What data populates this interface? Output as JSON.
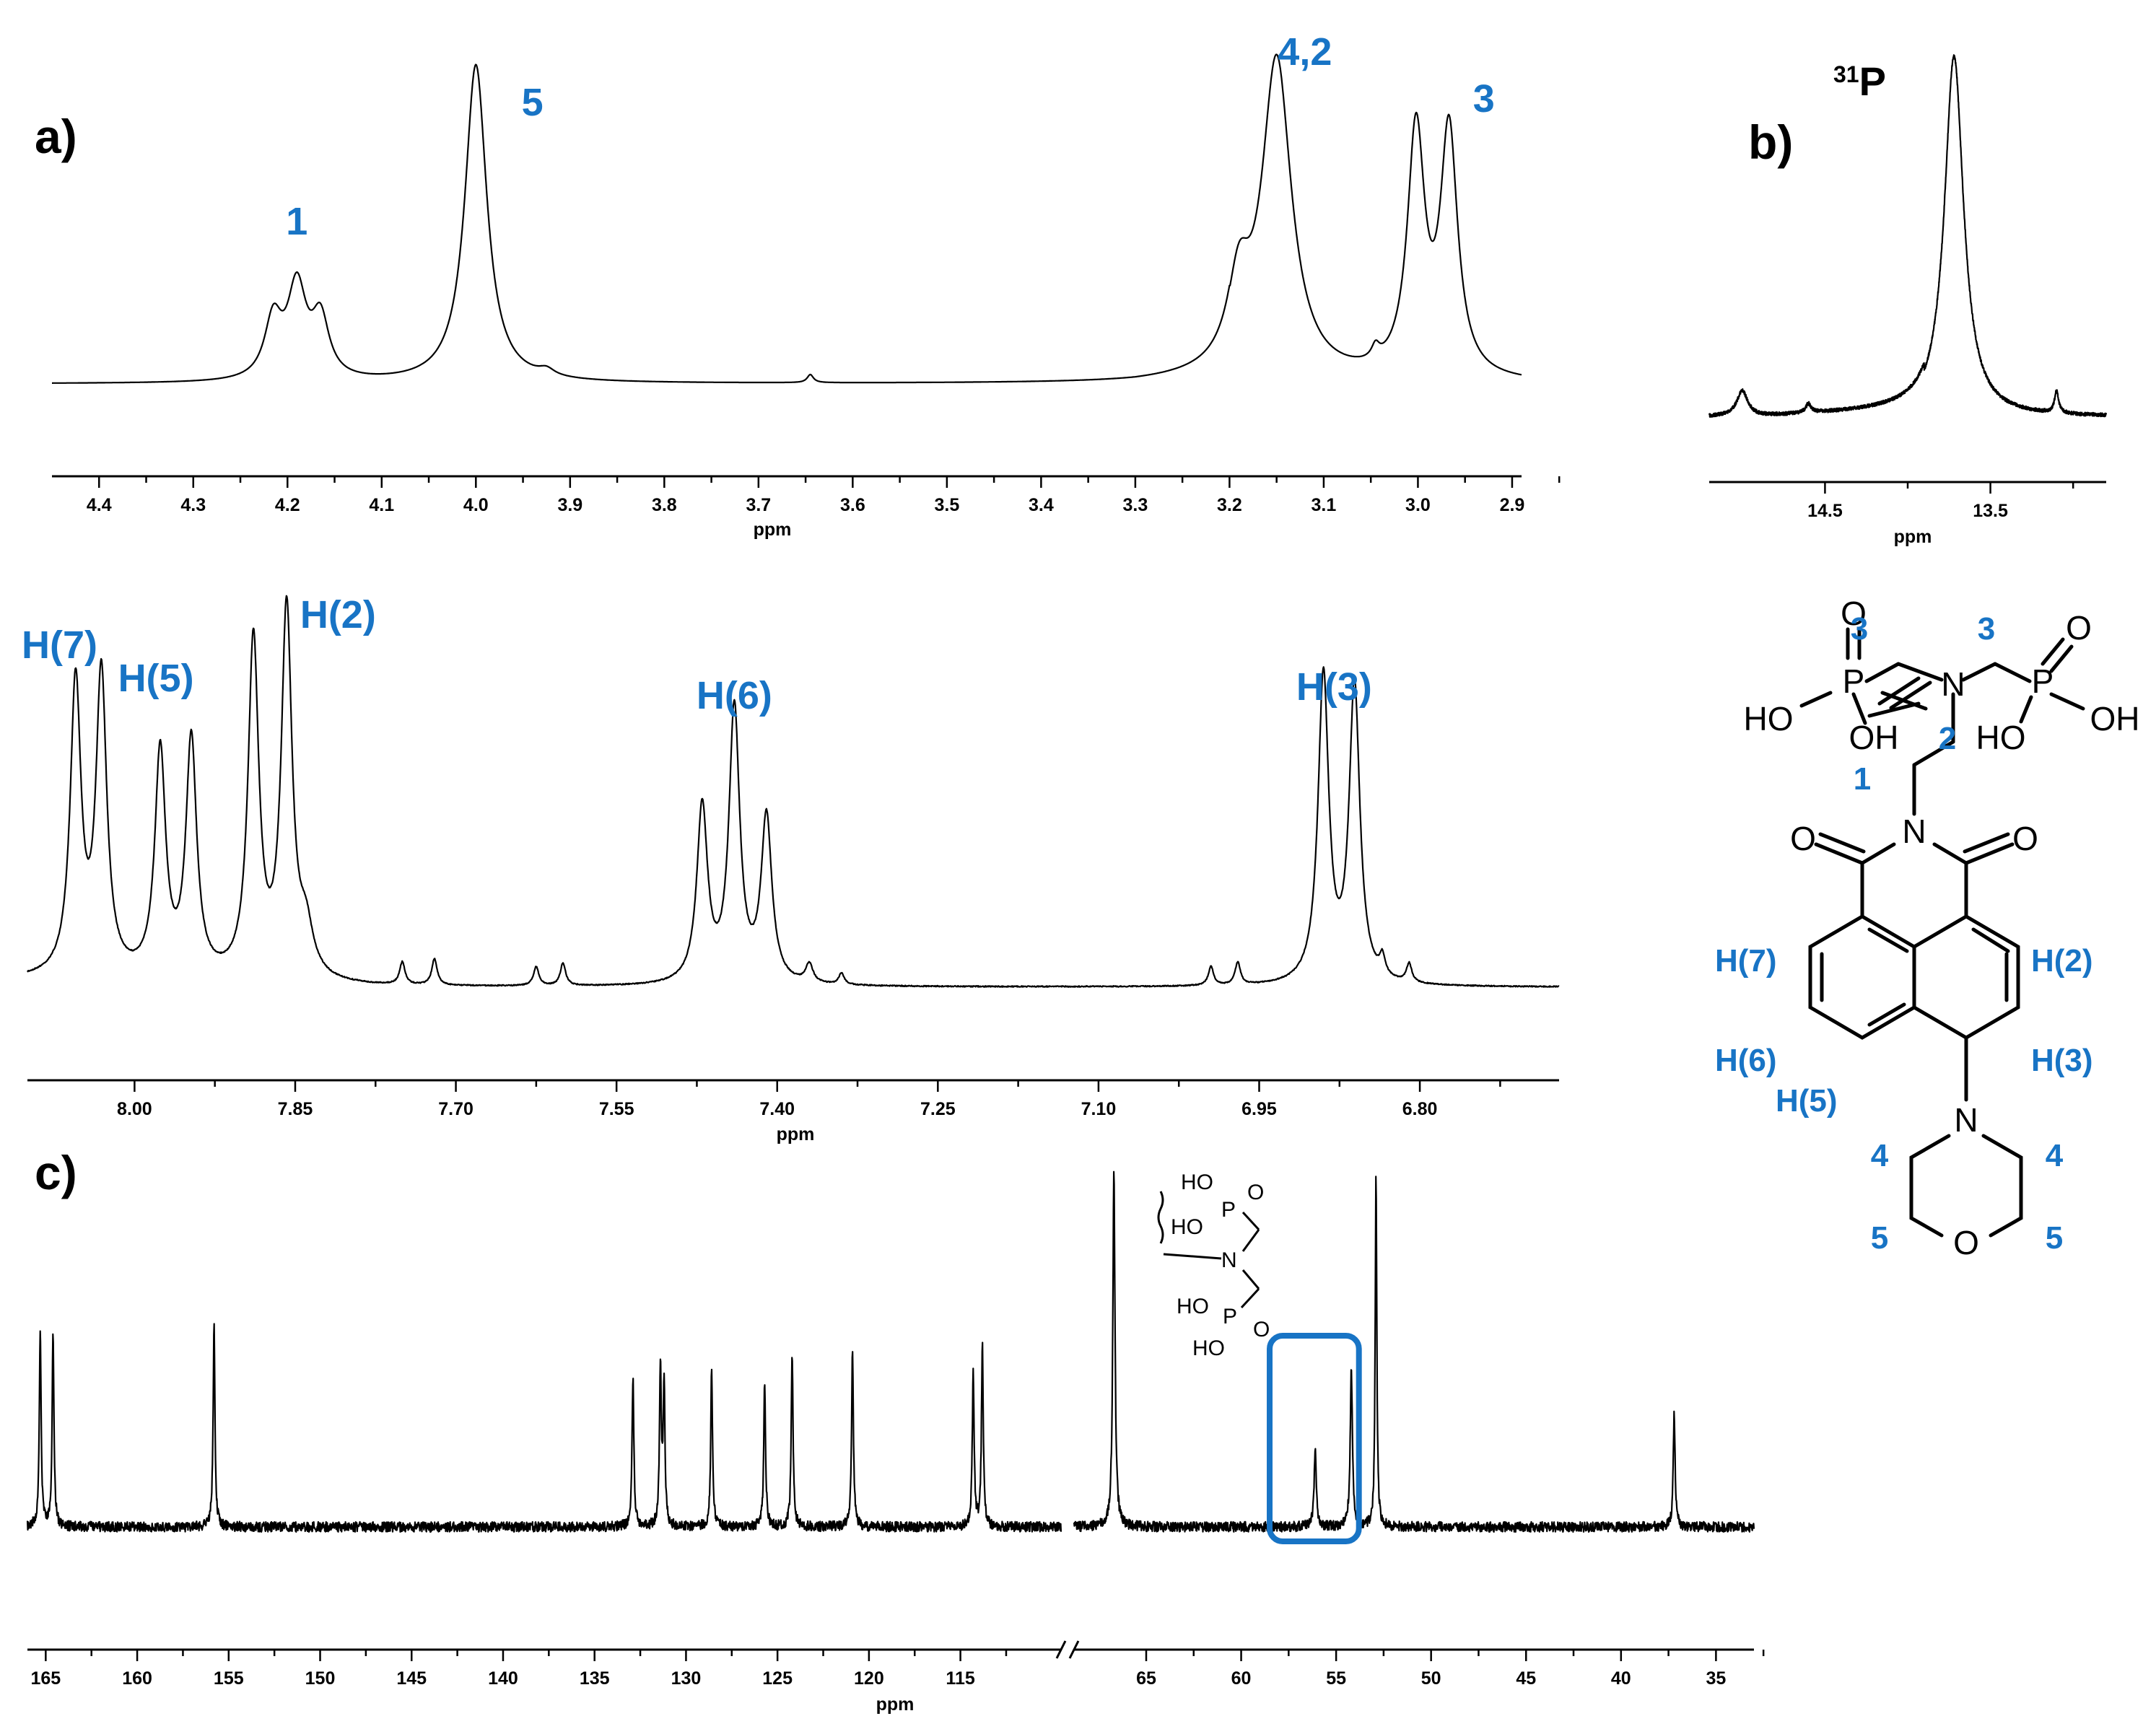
{
  "chart_data": [
    {
      "id": "a",
      "type": "line",
      "panel_label": "a)",
      "xlabel": "ppm",
      "x_reversed": true,
      "xlim": [
        4.45,
        2.89
      ],
      "xticks": [
        4.4,
        4.3,
        4.2,
        4.1,
        4.0,
        3.9,
        3.8,
        3.7,
        3.6,
        3.5,
        3.4,
        3.3,
        3.2,
        3.1,
        3.0,
        2.9
      ],
      "xtick_labels": [
        "4.4",
        "4.3",
        "4.2",
        "4.1",
        "4.0",
        "3.9",
        "3.8",
        "3.7",
        "3.6",
        "3.5",
        "3.4",
        "3.3",
        "3.2",
        "3.1",
        "3.0",
        "2.9"
      ],
      "grid": false,
      "annotations": [
        {
          "text": "1",
          "x": 4.19
        },
        {
          "text": "5",
          "x": 3.94
        },
        {
          "text": "4,2",
          "x": 3.12
        },
        {
          "text": "3",
          "x": 2.93
        }
      ],
      "peaks": [
        {
          "x": 4.215,
          "h": 0.18,
          "w": 0.011
        },
        {
          "x": 4.19,
          "h": 0.28,
          "w": 0.012
        },
        {
          "x": 4.165,
          "h": 0.18,
          "w": 0.011
        },
        {
          "x": 4.0,
          "h": 0.98,
          "w": 0.014
        },
        {
          "x": 3.925,
          "h": 0.02,
          "w": 0.01
        },
        {
          "x": 3.645,
          "h": 0.025,
          "w": 0.004
        },
        {
          "x": 3.19,
          "h": 0.25,
          "w": 0.014
        },
        {
          "x": 3.15,
          "h": 0.98,
          "w": 0.019
        },
        {
          "x": 3.045,
          "h": 0.04,
          "w": 0.005
        },
        {
          "x": 3.002,
          "h": 0.75,
          "w": 0.011
        },
        {
          "x": 2.967,
          "h": 0.75,
          "w": 0.011
        }
      ]
    },
    {
      "id": "b",
      "type": "line",
      "panel_label": "b)",
      "nucleus_mass": "31",
      "nucleus_symbol": "P",
      "xlabel": "ppm",
      "x_reversed": true,
      "xlim": [
        15.2,
        12.8
      ],
      "xticks": [
        14.5,
        13.5
      ],
      "xtick_labels": [
        "14.5",
        "13.5"
      ],
      "grid": false,
      "peaks": [
        {
          "x": 15.0,
          "h": 0.07,
          "w": 0.04
        },
        {
          "x": 14.6,
          "h": 0.025,
          "w": 0.02
        },
        {
          "x": 13.72,
          "h": 1.0,
          "w": 0.07
        },
        {
          "x": 13.1,
          "h": 0.06,
          "w": 0.015
        }
      ]
    },
    {
      "id": "mid",
      "type": "line",
      "xlabel": "ppm",
      "x_reversed": true,
      "xlim": [
        8.1,
        6.67
      ],
      "xticks": [
        8.0,
        7.85,
        7.7,
        7.55,
        7.4,
        7.25,
        7.1,
        6.95,
        6.8
      ],
      "xtick_labels": [
        "8.00",
        "7.85",
        "7.70",
        "7.55",
        "7.40",
        "7.25",
        "7.10",
        "6.95",
        "6.80"
      ],
      "grid": false,
      "annotations": [
        {
          "text": "H(7)",
          "x": 8.07
        },
        {
          "text": "H(5)",
          "x": 7.98
        },
        {
          "text": "H(2)",
          "x": 7.81
        },
        {
          "text": "H(6)",
          "x": 7.44
        },
        {
          "text": "H(3)",
          "x": 6.88
        }
      ],
      "peaks": [
        {
          "x": 8.055,
          "h": 0.78,
          "w": 0.006
        },
        {
          "x": 8.031,
          "h": 0.8,
          "w": 0.006
        },
        {
          "x": 7.976,
          "h": 0.6,
          "w": 0.006
        },
        {
          "x": 7.947,
          "h": 0.63,
          "w": 0.006
        },
        {
          "x": 7.889,
          "h": 0.9,
          "w": 0.006
        },
        {
          "x": 7.858,
          "h": 0.98,
          "w": 0.006
        },
        {
          "x": 7.84,
          "h": 0.12,
          "w": 0.008
        },
        {
          "x": 7.75,
          "h": 0.06,
          "w": 0.003
        },
        {
          "x": 7.72,
          "h": 0.07,
          "w": 0.003
        },
        {
          "x": 7.625,
          "h": 0.05,
          "w": 0.003
        },
        {
          "x": 7.6,
          "h": 0.06,
          "w": 0.003
        },
        {
          "x": 7.47,
          "h": 0.47,
          "w": 0.006
        },
        {
          "x": 7.44,
          "h": 0.73,
          "w": 0.006
        },
        {
          "x": 7.41,
          "h": 0.44,
          "w": 0.006
        },
        {
          "x": 7.37,
          "h": 0.05,
          "w": 0.004
        },
        {
          "x": 7.34,
          "h": 0.03,
          "w": 0.003
        },
        {
          "x": 6.995,
          "h": 0.05,
          "w": 0.003
        },
        {
          "x": 6.97,
          "h": 0.06,
          "w": 0.003
        },
        {
          "x": 6.89,
          "h": 0.82,
          "w": 0.006
        },
        {
          "x": 6.861,
          "h": 0.79,
          "w": 0.006
        },
        {
          "x": 6.835,
          "h": 0.05,
          "w": 0.003
        },
        {
          "x": 6.81,
          "h": 0.05,
          "w": 0.003
        }
      ]
    },
    {
      "id": "c",
      "type": "line",
      "panel_label": "c)",
      "xlabel": "ppm",
      "x_reversed": true,
      "axis_break": true,
      "segments": [
        {
          "xlim": [
            166.0,
            109.5
          ]
        },
        {
          "xlim": [
            68.8,
            33.0
          ]
        }
      ],
      "xticks": [
        165,
        160,
        155,
        150,
        145,
        140,
        135,
        130,
        125,
        120,
        115,
        65,
        60,
        55,
        50,
        45,
        40,
        35
      ],
      "xtick_labels": [
        "165",
        "160",
        "155",
        "150",
        "145",
        "140",
        "135",
        "130",
        "125",
        "120",
        "115",
        "65",
        "60",
        "55",
        "50",
        "45",
        "40",
        "35"
      ],
      "grid": false,
      "highlight_range": [
        58.5,
        53.8
      ],
      "peaks": [
        {
          "x": 165.3,
          "h": 0.55,
          "w": 0.06
        },
        {
          "x": 164.6,
          "h": 0.54,
          "w": 0.06
        },
        {
          "x": 155.8,
          "h": 0.57,
          "w": 0.06
        },
        {
          "x": 132.9,
          "h": 0.42,
          "w": 0.06
        },
        {
          "x": 131.4,
          "h": 0.45,
          "w": 0.06
        },
        {
          "x": 131.2,
          "h": 0.4,
          "w": 0.06
        },
        {
          "x": 128.6,
          "h": 0.44,
          "w": 0.06
        },
        {
          "x": 125.7,
          "h": 0.41,
          "w": 0.06
        },
        {
          "x": 124.2,
          "h": 0.49,
          "w": 0.06
        },
        {
          "x": 120.9,
          "h": 0.49,
          "w": 0.06
        },
        {
          "x": 114.3,
          "h": 0.43,
          "w": 0.06
        },
        {
          "x": 113.8,
          "h": 0.51,
          "w": 0.06
        },
        {
          "x": 66.7,
          "h": 1.0,
          "w": 0.07
        },
        {
          "x": 56.1,
          "h": 0.22,
          "w": 0.07
        },
        {
          "x": 54.2,
          "h": 0.44,
          "w": 0.07
        },
        {
          "x": 52.9,
          "h": 1.0,
          "w": 0.05
        },
        {
          "x": 37.2,
          "h": 0.32,
          "w": 0.06
        }
      ]
    }
  ],
  "structure": {
    "atoms": {
      "n_top": "N",
      "n_imide": "N",
      "n_morph": "N",
      "o_morph": "O",
      "o_imide_left": "O",
      "o_imide_right": "O",
      "p_left": "P",
      "p_right": "P",
      "o_p_left": "O",
      "o_p_right": "O",
      "ho_left": "HO",
      "oh_left": "OH",
      "ho_right": "HO",
      "oh_right": "OH"
    },
    "labels": {
      "c3_left": "3",
      "c3_right": "3",
      "c2": "2",
      "c1": "1",
      "h7": "H(7)",
      "h6": "H(6)",
      "h5": "H(5)",
      "h2": "H(2)",
      "h3": "H(3)",
      "c4_left": "4",
      "c4_right": "4",
      "c5_left": "5",
      "c5_right": "5"
    }
  },
  "inset_structure": {
    "ho_1": "HO",
    "p_1": "P",
    "o_1": "O",
    "ho_2": "HO",
    "n": "N",
    "ho_3": "HO",
    "p_2": "P",
    "o_2": "O",
    "ho_4": "HO"
  },
  "colors": {
    "label_blue": "#1874c5",
    "trace": "#000000"
  }
}
